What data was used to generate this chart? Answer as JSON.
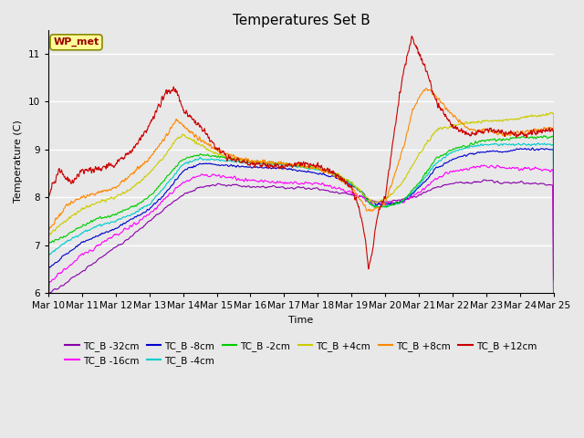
{
  "title": "Temperatures Set B",
  "xlabel": "Time",
  "ylabel": "Temperature (C)",
  "ylim": [
    6.0,
    11.5
  ],
  "xlim_days": [
    0,
    15
  ],
  "x_tick_labels": [
    "Mar 10",
    "Mar 11",
    "Mar 12",
    "Mar 13",
    "Mar 14",
    "Mar 15",
    "Mar 16",
    "Mar 17",
    "Mar 18",
    "Mar 19",
    "Mar 20",
    "Mar 21",
    "Mar 22",
    "Mar 23",
    "Mar 24",
    "Mar 25"
  ],
  "wp_met_label": "WP_met",
  "wp_met_color": "#990000",
  "wp_met_bg": "#ffff99",
  "background_color": "#e8e8e8",
  "plot_bg": "#e8e8e8",
  "grid_color": "#ffffff",
  "series": [
    {
      "label": "TC_B -32cm",
      "color": "#8800aa"
    },
    {
      "label": "TC_B -16cm",
      "color": "#ff00ff"
    },
    {
      "label": "TC_B -8cm",
      "color": "#0000cc"
    },
    {
      "label": "TC_B -4cm",
      "color": "#00cccc"
    },
    {
      "label": "TC_B -2cm",
      "color": "#00cc00"
    },
    {
      "label": "TC_B +4cm",
      "color": "#cccc00"
    },
    {
      "label": "TC_B +8cm",
      "color": "#ff8800"
    },
    {
      "label": "TC_B +12cm",
      "color": "#cc0000"
    }
  ]
}
